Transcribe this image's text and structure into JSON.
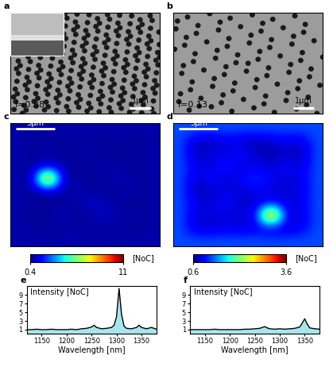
{
  "chart_data": [
    {
      "type": "image",
      "label": "a",
      "annotation": "f=0.38",
      "fill_fraction": 0.38,
      "scale_bar": "1μm"
    },
    {
      "type": "image",
      "label": "b",
      "annotation": "f=0.13",
      "fill_fraction": 0.13,
      "scale_bar": "1μm"
    },
    {
      "type": "heatmap",
      "label": "c",
      "scale_bar": "5μm",
      "cells": [
        [
          0.8,
          0.8,
          0.8,
          0.8,
          0.8,
          0.8,
          0.8,
          0.8,
          0.8,
          0.8
        ],
        [
          0.8,
          0.6,
          0.7,
          0.6,
          0.8,
          0.7,
          0.6,
          0.7,
          0.6,
          0.8
        ],
        [
          0.8,
          0.7,
          0.9,
          0.6,
          0.7,
          0.8,
          0.6,
          0.7,
          0.7,
          0.8
        ],
        [
          0.8,
          0.6,
          1.0,
          0.8,
          0.6,
          0.7,
          0.9,
          0.6,
          0.7,
          0.8
        ],
        [
          0.8,
          0.7,
          11,
          0.7,
          0.8,
          0.6,
          0.7,
          1.0,
          0.6,
          0.8
        ],
        [
          0.8,
          0.6,
          0.8,
          0.7,
          0.9,
          0.7,
          0.6,
          0.8,
          0.7,
          0.8
        ],
        [
          0.8,
          0.7,
          0.6,
          0.8,
          0.7,
          1.2,
          0.8,
          0.7,
          0.6,
          0.8
        ],
        [
          0.8,
          0.6,
          0.7,
          0.9,
          0.6,
          0.8,
          1.1,
          0.7,
          0.7,
          0.8
        ],
        [
          0.8,
          0.7,
          0.6,
          0.7,
          0.8,
          0.7,
          0.6,
          0.8,
          0.6,
          0.8
        ],
        [
          0.8,
          0.8,
          0.8,
          0.8,
          0.8,
          0.8,
          0.8,
          0.8,
          0.8,
          0.8
        ]
      ],
      "colorbar": {
        "range": [
          0.4,
          11
        ],
        "ticks": [
          0.4,
          11
        ],
        "label": "[NoC]"
      }
    },
    {
      "type": "heatmap",
      "label": "d",
      "scale_bar": "5μm",
      "cells": [
        [
          1.2,
          1.2,
          1.2,
          1.2,
          1.2,
          1.2,
          1.2,
          1.2,
          1.2,
          1.2
        ],
        [
          1.2,
          0.8,
          0.7,
          0.9,
          0.8,
          0.7,
          0.8,
          0.9,
          0.8,
          1.2
        ],
        [
          1.2,
          0.7,
          0.9,
          0.8,
          1.0,
          0.8,
          0.7,
          0.8,
          0.7,
          1.2
        ],
        [
          1.2,
          0.9,
          0.8,
          1.1,
          0.8,
          0.9,
          0.8,
          1.0,
          0.8,
          1.2
        ],
        [
          1.2,
          0.8,
          1.0,
          0.8,
          0.9,
          1.2,
          0.9,
          0.8,
          0.9,
          1.2
        ],
        [
          1.2,
          0.7,
          0.8,
          0.9,
          0.8,
          0.9,
          0.8,
          0.9,
          0.8,
          1.2
        ],
        [
          1.2,
          0.9,
          0.8,
          1.0,
          0.8,
          0.8,
          1.0,
          0.8,
          0.9,
          1.2
        ],
        [
          1.2,
          0.8,
          0.9,
          0.8,
          0.9,
          0.8,
          3.6,
          0.9,
          0.8,
          1.2
        ],
        [
          1.2,
          0.8,
          0.8,
          0.9,
          0.8,
          0.9,
          0.8,
          0.8,
          0.9,
          1.2
        ],
        [
          1.2,
          1.2,
          1.2,
          1.2,
          1.2,
          1.2,
          1.2,
          1.2,
          1.2,
          1.2
        ]
      ],
      "colorbar": {
        "range": [
          0.6,
          3.6
        ],
        "ticks": [
          0.6,
          3.6
        ],
        "label": "[NoC]"
      }
    },
    {
      "type": "line",
      "label": "e",
      "ylabel": "Intensity [NoC]",
      "xlabel": "Wavelength [nm]",
      "color": "#000000",
      "x": [
        1120,
        1130,
        1140,
        1150,
        1160,
        1170,
        1180,
        1190,
        1200,
        1210,
        1220,
        1230,
        1240,
        1250,
        1255,
        1260,
        1270,
        1280,
        1290,
        1295,
        1300,
        1305,
        1310,
        1315,
        1320,
        1330,
        1340,
        1345,
        1350,
        1360,
        1370,
        1380
      ],
      "values": [
        1.0,
        1.0,
        1.1,
        1.0,
        1.0,
        1.1,
        1.0,
        1.0,
        1.0,
        1.1,
        1.0,
        1.2,
        1.3,
        1.6,
        2.0,
        1.5,
        1.2,
        1.3,
        1.5,
        2.0,
        4.0,
        10.5,
        4.5,
        1.8,
        1.3,
        1.2,
        1.5,
        2.0,
        1.5,
        1.2,
        1.5,
        1.1
      ],
      "xlim": [
        1120,
        1380
      ],
      "xticks": [
        1150,
        1200,
        1250,
        1300,
        1350
      ],
      "ylim": [
        0,
        11
      ],
      "yticks": [
        1,
        3,
        5,
        7,
        9
      ]
    },
    {
      "type": "line",
      "label": "f",
      "ylabel": "Intensity [NoC]",
      "xlabel": "Wavelength [nm]",
      "color": "#000000",
      "x": [
        1120,
        1130,
        1140,
        1150,
        1160,
        1170,
        1180,
        1190,
        1200,
        1210,
        1220,
        1230,
        1240,
        1250,
        1260,
        1265,
        1270,
        1275,
        1280,
        1290,
        1300,
        1310,
        1320,
        1330,
        1340,
        1345,
        1350,
        1355,
        1360,
        1370,
        1380
      ],
      "values": [
        1.0,
        1.0,
        1.0,
        1.0,
        1.0,
        1.1,
        1.0,
        1.0,
        1.0,
        1.0,
        1.0,
        1.1,
        1.1,
        1.2,
        1.3,
        1.5,
        1.7,
        1.4,
        1.2,
        1.1,
        1.2,
        1.1,
        1.2,
        1.3,
        1.6,
        2.5,
        3.5,
        2.3,
        1.4,
        1.2,
        1.1
      ],
      "xlim": [
        1120,
        1380
      ],
      "xticks": [
        1150,
        1200,
        1250,
        1300,
        1350
      ],
      "ylim": [
        0,
        11
      ],
      "yticks": [
        1,
        3,
        5,
        7,
        9
      ]
    }
  ]
}
